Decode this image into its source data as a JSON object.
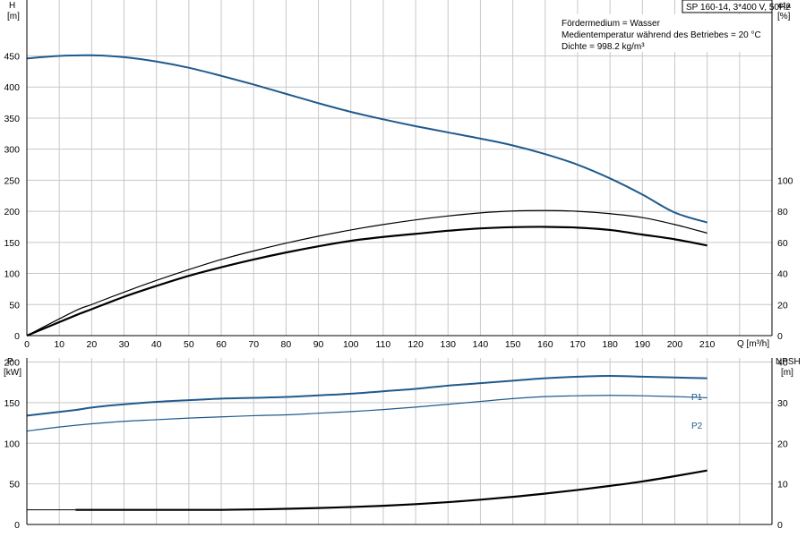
{
  "header": {
    "title": "SP 160-14, 3*400 V, 50Hz"
  },
  "info_lines": [
    "Fördermedium = Wasser",
    "Medientemperatur während des Betriebes = 20 °C",
    "Dichte = 998.2 kg/m³"
  ],
  "colors": {
    "grid": "#c8c8c8",
    "axis": "#000000",
    "blue": "#1f5a8c",
    "black": "#000000"
  },
  "chart_data": [
    {
      "type": "line",
      "name": "top",
      "x_label": "Q [m³/h]",
      "x_ticks": [
        "0",
        "10",
        "20",
        "30",
        "40",
        "50",
        "60",
        "70",
        "80",
        "90",
        "100",
        "110",
        "120",
        "130",
        "140",
        "150",
        "160",
        "170",
        "180",
        "190",
        "200",
        "210"
      ],
      "xlim": [
        0,
        230
      ],
      "left_axis": {
        "label_line1": "H",
        "label_line2": "[m]",
        "ticks": [
          "0",
          "50",
          "100",
          "150",
          "200",
          "250",
          "300",
          "350",
          "400",
          "450"
        ],
        "ylim": [
          0,
          540
        ]
      },
      "right_axis": {
        "label_line1": "eta",
        "label_line2": "[%]",
        "ticks": [
          "0",
          "20",
          "40",
          "60",
          "80",
          "100"
        ],
        "ylim": [
          0,
          216
        ]
      },
      "series": [
        {
          "axis": "left",
          "color": "#1f5a8c",
          "width": 2,
          "x": [
            0,
            10,
            20,
            30,
            40,
            50,
            60,
            70,
            80,
            90,
            100,
            110,
            120,
            130,
            140,
            150,
            160,
            170,
            180,
            190,
            200,
            210
          ],
          "y": [
            446,
            450,
            451,
            448,
            441,
            431,
            418,
            404,
            389,
            374,
            360,
            348,
            337,
            327,
            317,
            306,
            292,
            275,
            253,
            227,
            198,
            182
          ]
        },
        {
          "axis": "right",
          "color": "#000000",
          "width": 1.2,
          "x": [
            0,
            15,
            20,
            30,
            40,
            50,
            60,
            70,
            80,
            90,
            100,
            110,
            120,
            130,
            140,
            150,
            160,
            170,
            180,
            190,
            200,
            210
          ],
          "y": [
            0,
            16,
            20,
            28,
            35.5,
            42.5,
            49,
            54.5,
            59.5,
            64,
            68,
            71.5,
            74.5,
            77,
            79,
            80.2,
            80.5,
            80,
            78.5,
            76,
            71.5,
            66
          ]
        },
        {
          "axis": "right",
          "color": "#000000",
          "width": 2.2,
          "x": [
            0,
            15,
            20,
            30,
            40,
            50,
            60,
            70,
            80,
            90,
            100,
            110,
            120,
            130,
            140,
            150,
            160,
            170,
            180,
            190,
            200,
            210
          ],
          "y": [
            0,
            13,
            17,
            25,
            32,
            38.5,
            44,
            49,
            53.5,
            57.5,
            61,
            63.5,
            65.5,
            67.5,
            69,
            69.8,
            70,
            69.5,
            68,
            65,
            62,
            58
          ]
        }
      ]
    },
    {
      "type": "line",
      "name": "bottom",
      "xlim": [
        0,
        230
      ],
      "left_axis": {
        "label_line1": "P",
        "label_line2": "[kW]",
        "ticks": [
          "0",
          "50",
          "100",
          "150",
          "200"
        ],
        "ylim": [
          0,
          205
        ]
      },
      "right_axis": {
        "label_line1": "NPSH",
        "label_line2": "[m]",
        "ticks": [
          "0",
          "10",
          "20",
          "30",
          "40"
        ],
        "ylim": [
          0,
          41
        ]
      },
      "series": [
        {
          "name": "P1",
          "label": "P1",
          "axis": "left",
          "color": "#1f5a8c",
          "width": 2,
          "x": [
            0,
            15,
            20,
            30,
            40,
            50,
            60,
            70,
            80,
            90,
            100,
            110,
            120,
            130,
            140,
            150,
            160,
            170,
            180,
            190,
            200,
            210
          ],
          "y": [
            134,
            141,
            144,
            148,
            151,
            153,
            155,
            156,
            157,
            159,
            161,
            164,
            167,
            171,
            174,
            177,
            180,
            182,
            183,
            182,
            181,
            180
          ]
        },
        {
          "name": "P2",
          "label": "P2",
          "axis": "left",
          "color": "#1f5a8c",
          "width": 1.2,
          "x": [
            0,
            10,
            20,
            30,
            40,
            50,
            60,
            70,
            80,
            90,
            100,
            110,
            120,
            130,
            140,
            150,
            160,
            170,
            180,
            190,
            200,
            210
          ],
          "y": [
            115,
            120,
            124,
            127,
            129,
            131,
            132.5,
            134,
            135,
            137,
            139,
            141.5,
            144.5,
            148,
            151.5,
            155,
            157.5,
            158.5,
            159,
            158.5,
            157.5,
            156
          ]
        },
        {
          "axis": "right",
          "color": "#000000",
          "width": 1,
          "x": [
            0,
            15
          ],
          "y": [
            3.6,
            3.6
          ]
        },
        {
          "axis": "right",
          "color": "#000000",
          "width": 2.2,
          "x": [
            15,
            30,
            40,
            50,
            60,
            70,
            80,
            90,
            100,
            110,
            120,
            130,
            140,
            150,
            160,
            170,
            180,
            190,
            200,
            210
          ],
          "y": [
            3.6,
            3.6,
            3.6,
            3.6,
            3.6,
            3.7,
            3.85,
            4.05,
            4.3,
            4.6,
            5,
            5.5,
            6.1,
            6.8,
            7.6,
            8.5,
            9.5,
            10.6,
            11.9,
            13.3
          ]
        }
      ]
    }
  ]
}
